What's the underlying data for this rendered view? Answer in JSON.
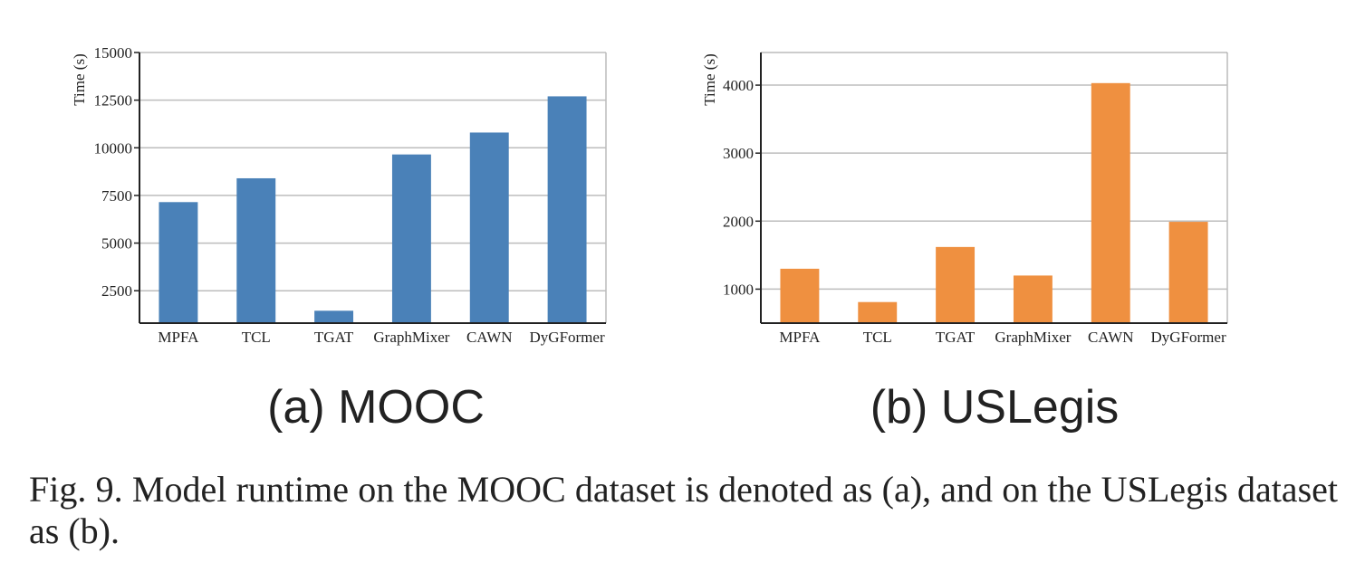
{
  "chart_data": [
    {
      "type": "bar",
      "title": "",
      "xlabel": "",
      "ylabel": "Time (s)",
      "categories": [
        "MPFA",
        "TCL",
        "TGAT",
        "GraphMixer",
        "CAWN",
        "DyGFormer"
      ],
      "values": [
        7150,
        8400,
        1450,
        9650,
        10800,
        12700
      ],
      "ylim": [
        800,
        15000
      ],
      "yticks": [
        2500,
        5000,
        7500,
        10000,
        12500,
        15000
      ],
      "grid": true,
      "color": "#4a81b8",
      "panel_label": "(a) MOOC"
    },
    {
      "type": "bar",
      "title": "",
      "xlabel": "",
      "ylabel": "Time (s)",
      "categories": [
        "MPFA",
        "TCL",
        "TGAT",
        "GraphMixer",
        "CAWN",
        "DyGFormer"
      ],
      "values": [
        1300,
        810,
        1620,
        1200,
        4030,
        1990
      ],
      "ylim": [
        500,
        4480
      ],
      "yticks": [
        1000,
        2000,
        3000,
        4000
      ],
      "grid": true,
      "color": "#ef9040",
      "panel_label": "(b) USLegis"
    }
  ],
  "caption": "Fig. 9.  Model runtime on the MOOC dataset is denoted as (a), and on the USLegis dataset as (b)."
}
